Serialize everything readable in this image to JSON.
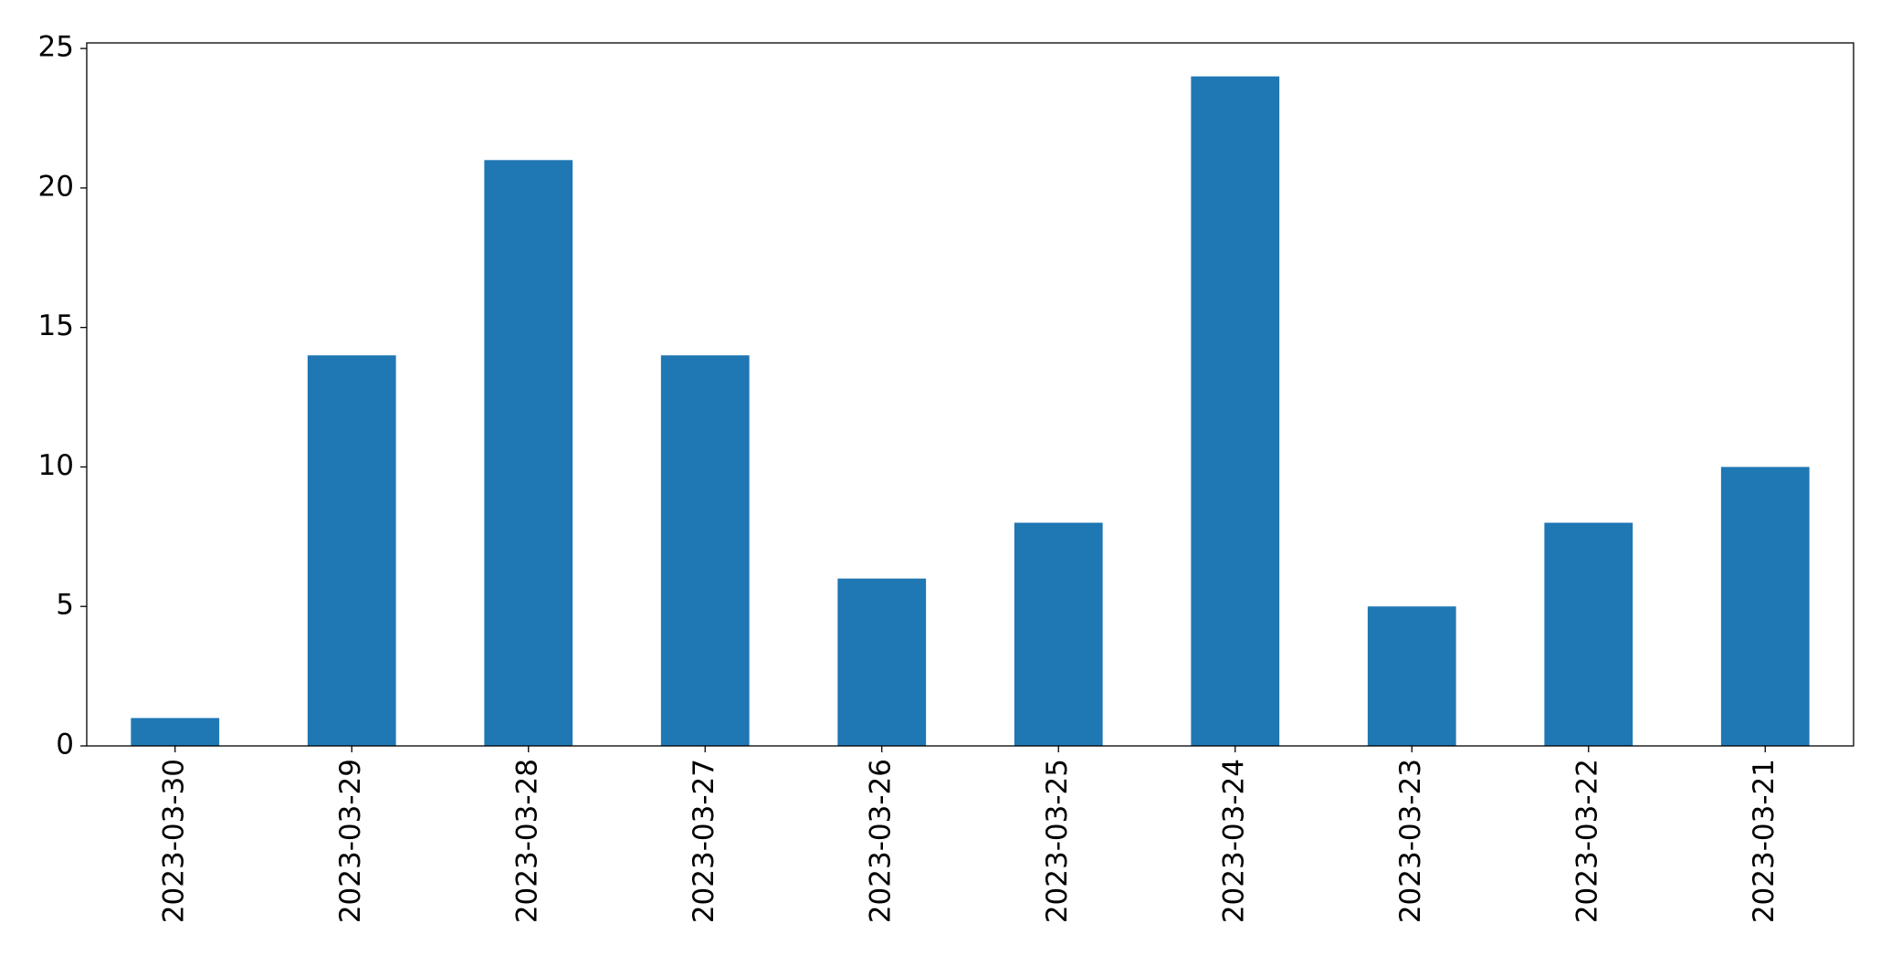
{
  "chart_data": {
    "type": "bar",
    "categories": [
      "2023-03-30",
      "2023-03-29",
      "2023-03-28",
      "2023-03-27",
      "2023-03-26",
      "2023-03-25",
      "2023-03-24",
      "2023-03-23",
      "2023-03-22",
      "2023-03-21"
    ],
    "values": [
      1,
      14,
      21,
      14,
      6,
      8,
      24,
      5,
      8,
      10
    ],
    "color": "#1f77b4",
    "ylim": [
      0,
      25.2
    ],
    "yticks": [
      0,
      5,
      10,
      15,
      20,
      25
    ],
    "grid": false
  }
}
